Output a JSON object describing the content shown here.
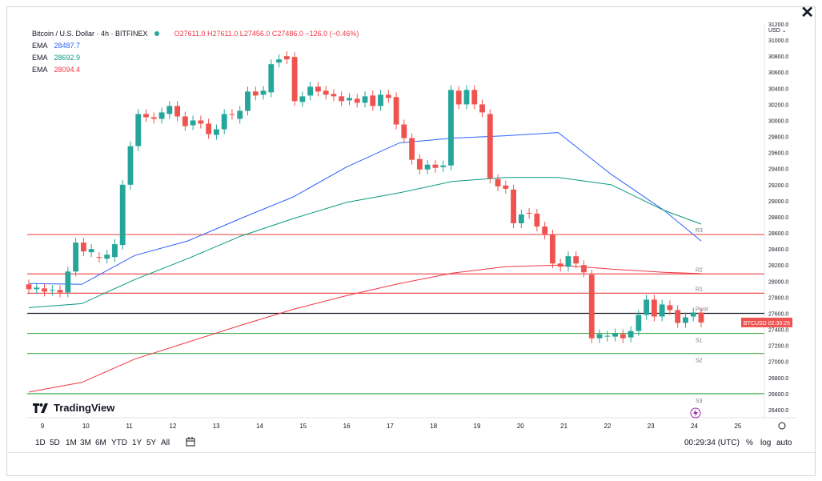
{
  "header": {
    "title": "Bitcoin / U.S. Dollar · 4h · BITFINEX",
    "ohlc": "O27611.0 H27611.0 L27456.0 C27486.0 −126.0 (−0.46%)",
    "ema": [
      {
        "label": "EMA",
        "value": "28487.7",
        "color": "#2962ff"
      },
      {
        "label": "EMA",
        "value": "28692.9",
        "color": "#089981"
      },
      {
        "label": "EMA",
        "value": "28094.4",
        "color": "#f23645"
      }
    ]
  },
  "currency_label": "USD",
  "brand": "TradingView",
  "price_tag": {
    "symbol": "BTCUSD",
    "countdown": "02:30:26"
  },
  "toolbar": {
    "timeframes": [
      "1D",
      "5D",
      "1M",
      "3M",
      "6M",
      "YTD",
      "1Y",
      "5Y",
      "All"
    ],
    "time": "00:29:34 (UTC)",
    "percent": "%",
    "log": "log",
    "auto": "auto"
  },
  "colors": {
    "up": "#26a69a",
    "down": "#ef5350",
    "ema_fast": "#2962ff",
    "ema_mid": "#089981",
    "ema_slow": "#f23645"
  },
  "chart_data": {
    "type": "candlestick",
    "title": "Bitcoin / U.S. Dollar · 4h · BITFINEX",
    "x_ticks": [
      "9",
      "10",
      "11",
      "12",
      "13",
      "14",
      "15",
      "16",
      "17",
      "18",
      "19",
      "20",
      "21",
      "22",
      "23",
      "24",
      "25"
    ],
    "y_ticks": [
      "26400.0",
      "26600.0",
      "26800.0",
      "27000.0",
      "27200.0",
      "27400.0",
      "27600.0",
      "27800.0",
      "28000.0",
      "28200.0",
      "28400.0",
      "28600.0",
      "28800.0",
      "29000.0",
      "29200.0",
      "29400.0",
      "29600.0",
      "29800.0",
      "30000.0",
      "30200.0",
      "30400.0",
      "30600.0",
      "30800.0",
      "31000.0",
      "31200.0"
    ],
    "ylim": [
      26300,
      31200
    ],
    "candles": [
      [
        27960,
        27900
      ],
      [
        27900,
        27920
      ],
      [
        27910,
        27870
      ],
      [
        27880,
        27890
      ],
      [
        27890,
        27860
      ],
      [
        27860,
        28120
      ],
      [
        28120,
        28480
      ],
      [
        28480,
        28370
      ],
      [
        28360,
        28400
      ],
      [
        28300,
        28290
      ],
      [
        28280,
        28330
      ],
      [
        28300,
        28460
      ],
      [
        28450,
        29200
      ],
      [
        29200,
        29680
      ],
      [
        29680,
        30080
      ],
      [
        30080,
        30040
      ],
      [
        30040,
        30020
      ],
      [
        30020,
        30100
      ],
      [
        30080,
        30180
      ],
      [
        30180,
        30050
      ],
      [
        30050,
        29930
      ],
      [
        29940,
        30000
      ],
      [
        30000,
        29960
      ],
      [
        29960,
        29830
      ],
      [
        29820,
        29890
      ],
      [
        29890,
        30080
      ],
      [
        30080,
        30070
      ],
      [
        30020,
        30120
      ],
      [
        30120,
        30360
      ],
      [
        30360,
        30310
      ],
      [
        30320,
        30370
      ],
      [
        30350,
        30700
      ],
      [
        30720,
        30760
      ],
      [
        30800,
        30760
      ],
      [
        30790,
        30240
      ],
      [
        30230,
        30300
      ],
      [
        30310,
        30420
      ],
      [
        30420,
        30360
      ],
      [
        30370,
        30320
      ],
      [
        30330,
        30300
      ],
      [
        30300,
        30240
      ],
      [
        30250,
        30280
      ],
      [
        30270,
        30220
      ],
      [
        30220,
        30300
      ],
      [
        30310,
        30180
      ],
      [
        30180,
        30320
      ],
      [
        30320,
        30280
      ],
      [
        30290,
        29950
      ],
      [
        29950,
        29780
      ],
      [
        29780,
        29510
      ],
      [
        29520,
        29390
      ],
      [
        29390,
        29450
      ],
      [
        29450,
        29410
      ],
      [
        29420,
        29440
      ],
      [
        29440,
        30380
      ],
      [
        30370,
        30200
      ],
      [
        30200,
        30380
      ],
      [
        30380,
        30200
      ],
      [
        30200,
        30100
      ],
      [
        30080,
        29280
      ],
      [
        29270,
        29180
      ],
      [
        29190,
        29150
      ],
      [
        29140,
        28720
      ],
      [
        28720,
        28830
      ],
      [
        28850,
        28840
      ],
      [
        28840,
        28680
      ],
      [
        28680,
        28580
      ],
      [
        28580,
        28220
      ],
      [
        28220,
        28180
      ],
      [
        28180,
        28310
      ],
      [
        28310,
        28220
      ],
      [
        28200,
        28110
      ],
      [
        28080,
        27290
      ],
      [
        27290,
        27340
      ],
      [
        27310,
        27320
      ],
      [
        27310,
        27350
      ],
      [
        27340,
        27290
      ],
      [
        27300,
        27380
      ],
      [
        27380,
        27580
      ],
      [
        27580,
        27770
      ],
      [
        27770,
        27560
      ],
      [
        27560,
        27710
      ],
      [
        27700,
        27640
      ],
      [
        27640,
        27480
      ],
      [
        27480,
        27550
      ],
      [
        27560,
        27610
      ],
      [
        27610,
        27486
      ]
    ],
    "series": [
      {
        "name": "EMA",
        "color": "#2962ff",
        "points": [
          [
            0,
            27970
          ],
          [
            10,
            27960
          ],
          [
            20,
            28320
          ],
          [
            30,
            28500
          ],
          [
            40,
            28780
          ],
          [
            50,
            29050
          ],
          [
            60,
            29420
          ],
          [
            70,
            29720
          ],
          [
            80,
            29780
          ],
          [
            90,
            29810
          ],
          [
            100,
            29850
          ],
          [
            110,
            29330
          ],
          [
            120,
            28880
          ],
          [
            127,
            28500
          ]
        ]
      },
      {
        "name": "EMA",
        "color": "#089981",
        "points": [
          [
            0,
            27670
          ],
          [
            10,
            27720
          ],
          [
            20,
            28020
          ],
          [
            30,
            28280
          ],
          [
            40,
            28560
          ],
          [
            50,
            28780
          ],
          [
            60,
            28980
          ],
          [
            70,
            29100
          ],
          [
            80,
            29240
          ],
          [
            90,
            29290
          ],
          [
            100,
            29290
          ],
          [
            110,
            29200
          ],
          [
            120,
            28880
          ],
          [
            127,
            28710
          ]
        ]
      },
      {
        "name": "EMA",
        "color": "#f23645",
        "points": [
          [
            0,
            26620
          ],
          [
            10,
            26740
          ],
          [
            20,
            27030
          ],
          [
            30,
            27240
          ],
          [
            40,
            27450
          ],
          [
            50,
            27650
          ],
          [
            60,
            27820
          ],
          [
            70,
            27970
          ],
          [
            80,
            28100
          ],
          [
            90,
            28180
          ],
          [
            100,
            28200
          ],
          [
            110,
            28150
          ],
          [
            120,
            28110
          ],
          [
            127,
            28094
          ]
        ]
      }
    ],
    "levels": [
      {
        "label": "R3",
        "value": 28580,
        "color": "#ef5350"
      },
      {
        "label": "R2",
        "value": 28090,
        "color": "#ef5350"
      },
      {
        "label": "R1",
        "value": 27850,
        "color": "#ef5350"
      },
      {
        "label": "Pivot",
        "value": 27600,
        "color": "#131722"
      },
      {
        "label": "S1",
        "value": 27350,
        "color": "#4caf50"
      },
      {
        "label": "S2",
        "value": 27100,
        "color": "#4caf50"
      },
      {
        "label": "S3",
        "value": 26600,
        "color": "#4caf50"
      }
    ],
    "last_price": 27486
  }
}
